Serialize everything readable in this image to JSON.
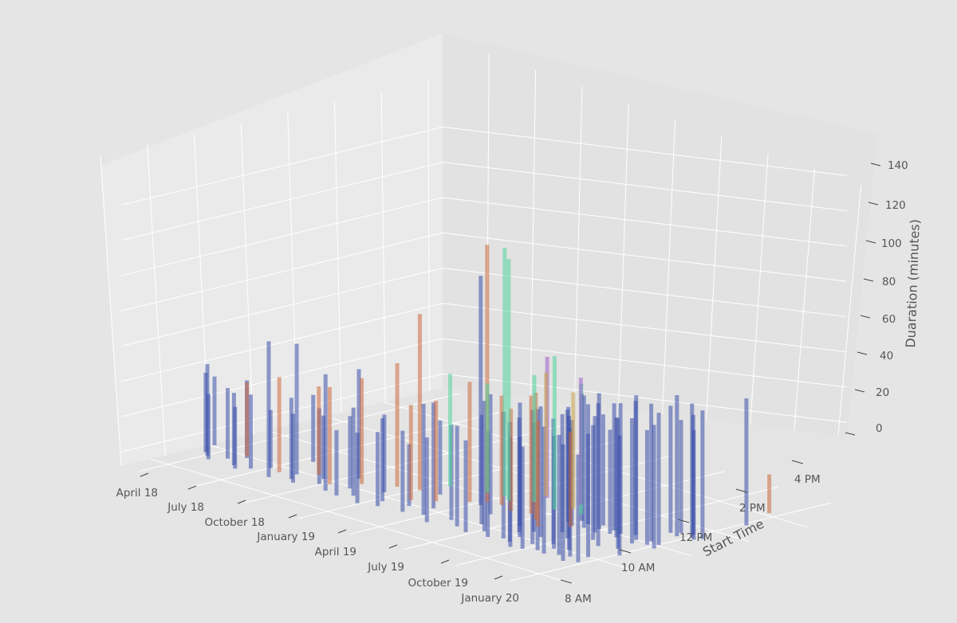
{
  "chart_data": {
    "type": "3d-bar",
    "title": "",
    "xlabel": "",
    "ylabel": "Start Time",
    "zlabel": "Duaration (minutes)",
    "x_ticks": [
      "April 18",
      "July 18",
      "October 18",
      "January 19",
      "April 19",
      "July 19",
      "October 19",
      "January 20"
    ],
    "y_ticks": [
      "8 AM",
      "10 AM",
      "12 PM",
      "2 PM",
      "4 PM"
    ],
    "z_ticks": [
      "0",
      "20",
      "40",
      "60",
      "80",
      "100",
      "120",
      "140"
    ],
    "x_range": [
      "2018-03-01",
      "2020-03-01"
    ],
    "y_range_hours": [
      7,
      18
    ],
    "z_range": [
      -8,
      150
    ],
    "grid": true,
    "colors": {
      "background": "#e5e5e5",
      "pane_left": "#eaeaea",
      "pane_right": "#e2e2e2",
      "pane_floor": "#e4e4e4",
      "grid": "#ffffff",
      "series_blue": "#3a4faa",
      "series_orange": "#cc6a3e",
      "series_green": "#4fd49c",
      "series_purple": "#9c5fc9",
      "series_tan": "#c9a24a"
    },
    "series": [
      {
        "color": "series_blue",
        "points": [
          [
            "2018-04-10",
            9.4,
            37
          ],
          [
            "2018-04-25",
            8.8,
            43
          ],
          [
            "2018-05-08",
            8.6,
            50
          ],
          [
            "2018-05-20",
            8.4,
            35
          ],
          [
            "2018-06-02",
            8.8,
            38
          ],
          [
            "2018-06-15",
            9.2,
            42
          ],
          [
            "2018-06-28",
            8.5,
            39
          ],
          [
            "2018-07-10",
            8.3,
            33
          ],
          [
            "2018-07-22",
            8.6,
            40
          ],
          [
            "2018-08-05",
            9.0,
            31
          ],
          [
            "2018-08-18",
            10.2,
            36
          ],
          [
            "2018-09-01",
            8.4,
            75
          ],
          [
            "2018-09-14",
            9.1,
            72
          ],
          [
            "2018-09-25",
            8.7,
            44
          ],
          [
            "2018-10-08",
            8.5,
            37
          ],
          [
            "2018-10-20",
            9.3,
            34
          ],
          [
            "2018-11-02",
            8.9,
            41
          ],
          [
            "2018-11-15",
            10.0,
            60
          ],
          [
            "2018-11-28",
            8.6,
            64
          ],
          [
            "2018-12-10",
            9.2,
            39
          ],
          [
            "2018-12-22",
            8.5,
            35
          ],
          [
            "2019-01-05",
            8.8,
            48
          ],
          [
            "2019-01-18",
            9.6,
            42
          ],
          [
            "2019-02-01",
            8.4,
            38
          ],
          [
            "2019-02-14",
            9.0,
            45
          ],
          [
            "2019-02-26",
            8.6,
            40
          ],
          [
            "2019-03-10",
            10.5,
            40
          ],
          [
            "2019-03-22",
            9.2,
            33
          ],
          [
            "2019-04-05",
            8.7,
            44
          ],
          [
            "2019-04-18",
            9.5,
            58
          ],
          [
            "2019-05-01",
            8.9,
            61
          ],
          [
            "2019-05-14",
            10.6,
            128
          ],
          [
            "2019-05-27",
            8.5,
            46
          ],
          [
            "2019-06-08",
            9.1,
            52
          ],
          [
            "2019-06-20",
            10.2,
            66
          ],
          [
            "2019-07-03",
            8.8,
            55
          ],
          [
            "2019-07-15",
            9.4,
            60
          ],
          [
            "2019-07-28",
            8.6,
            50
          ],
          [
            "2019-08-09",
            9.0,
            72
          ],
          [
            "2019-08-20",
            10.0,
            68
          ],
          [
            "2019-08-30",
            8.7,
            58
          ],
          [
            "2019-09-08",
            9.6,
            63
          ],
          [
            "2019-09-16",
            8.9,
            70
          ],
          [
            "2019-09-24",
            9.3,
            55
          ],
          [
            "2019-10-02",
            8.8,
            66
          ],
          [
            "2019-10-10",
            9.7,
            72
          ],
          [
            "2019-10-18",
            8.5,
            60
          ],
          [
            "2019-10-26",
            9.1,
            74
          ],
          [
            "2019-11-03",
            8.6,
            56
          ],
          [
            "2019-11-11",
            9.5,
            69
          ],
          [
            "2019-11-19",
            8.8,
            78
          ],
          [
            "2019-11-27",
            9.2,
            62
          ],
          [
            "2019-12-05",
            8.7,
            70
          ],
          [
            "2019-12-13",
            9.4,
            74
          ],
          [
            "2019-12-21",
            8.9,
            66
          ],
          [
            "2020-01-04",
            9.0,
            71
          ],
          [
            "2020-01-12",
            8.6,
            64
          ],
          [
            "2020-01-20",
            9.3,
            68
          ],
          [
            "2020-01-28",
            8.8,
            59
          ],
          [
            "2019-09-12",
            11.2,
            63
          ],
          [
            "2019-09-20",
            11.5,
            70
          ],
          [
            "2019-09-28",
            11.0,
            58
          ],
          [
            "2019-10-06",
            11.4,
            66
          ],
          [
            "2019-10-14",
            11.1,
            73
          ],
          [
            "2019-10-22",
            11.6,
            61
          ],
          [
            "2019-10-30",
            11.3,
            75
          ],
          [
            "2019-11-07",
            11.0,
            64
          ],
          [
            "2019-11-15",
            11.5,
            70
          ],
          [
            "2019-11-23",
            11.2,
            57
          ],
          [
            "2019-12-01",
            11.4,
            72
          ],
          [
            "2019-12-09",
            11.1,
            66
          ],
          [
            "2019-12-17",
            11.6,
            74
          ],
          [
            "2020-01-02",
            11.3,
            80
          ],
          [
            "2020-01-10",
            11.0,
            69
          ],
          [
            "2020-01-18",
            11.5,
            76
          ],
          [
            "2020-01-26",
            11.2,
            63
          ],
          [
            "2020-02-05",
            11.4,
            73
          ],
          [
            "2020-02-12",
            11.1,
            68
          ],
          [
            "2019-09-18",
            9.9,
            60
          ],
          [
            "2019-10-12",
            10.4,
            65
          ],
          [
            "2019-11-05",
            10.1,
            71
          ],
          [
            "2019-11-29",
            10.5,
            63
          ],
          [
            "2019-12-23",
            10.2,
            79
          ],
          [
            "2020-01-16",
            10.4,
            72
          ],
          [
            "2020-02-08",
            10.0,
            66
          ],
          [
            "2020-01-06",
            12.4,
            70
          ],
          [
            "2020-01-14",
            12.6,
            62
          ],
          [
            "2020-01-22",
            12.3,
            78
          ],
          [
            "2020-01-30",
            12.7,
            66
          ],
          [
            "2020-02-07",
            12.5,
            74
          ],
          [
            "2020-02-15",
            12.4,
            60
          ],
          [
            "2020-02-20",
            12.6,
            71
          ],
          [
            "2020-02-10",
            14.3,
            70
          ]
        ]
      },
      {
        "color": "series_orange",
        "points": [
          [
            "2018-06-10",
            9.3,
            40
          ],
          [
            "2018-08-25",
            8.9,
            52
          ],
          [
            "2018-10-02",
            9.5,
            48
          ],
          [
            "2018-11-10",
            9.1,
            53
          ],
          [
            "2018-12-05",
            9.7,
            58
          ],
          [
            "2019-01-10",
            10.2,
            68
          ],
          [
            "2019-02-08",
            10.4,
            98
          ],
          [
            "2019-03-05",
            9.6,
            52
          ],
          [
            "2019-03-28",
            10.0,
            55
          ],
          [
            "2019-04-25",
            10.6,
            66
          ],
          [
            "2019-05-10",
            10.9,
            144
          ],
          [
            "2019-05-30",
            11.0,
            60
          ],
          [
            "2019-06-25",
            10.8,
            56
          ],
          [
            "2019-07-20",
            11.0,
            65
          ],
          [
            "2019-08-12",
            10.7,
            70
          ],
          [
            "2019-09-05",
            10.3,
            58
          ],
          [
            "2019-10-01",
            10.9,
            52
          ],
          [
            "2020-01-20",
            15.5,
            20
          ]
        ]
      },
      {
        "color": "series_green",
        "points": [
          [
            "2019-02-20",
            11.2,
            62
          ],
          [
            "2019-04-10",
            11.5,
            60
          ],
          [
            "2019-05-05",
            11.6,
            139
          ],
          [
            "2019-05-22",
            11.4,
            135
          ],
          [
            "2019-06-15",
            11.8,
            70
          ],
          [
            "2019-07-25",
            11.7,
            85
          ],
          [
            "2019-08-30",
            11.9,
            72
          ]
        ]
      },
      {
        "color": "series_purple",
        "points": [
          [
            "2019-06-12",
            12.3,
            78
          ],
          [
            "2019-07-30",
            12.5,
            70
          ]
        ]
      },
      {
        "color": "series_tan",
        "points": [
          [
            "2019-06-05",
            12.4,
            68
          ],
          [
            "2019-08-06",
            12.1,
            64
          ]
        ]
      }
    ]
  }
}
